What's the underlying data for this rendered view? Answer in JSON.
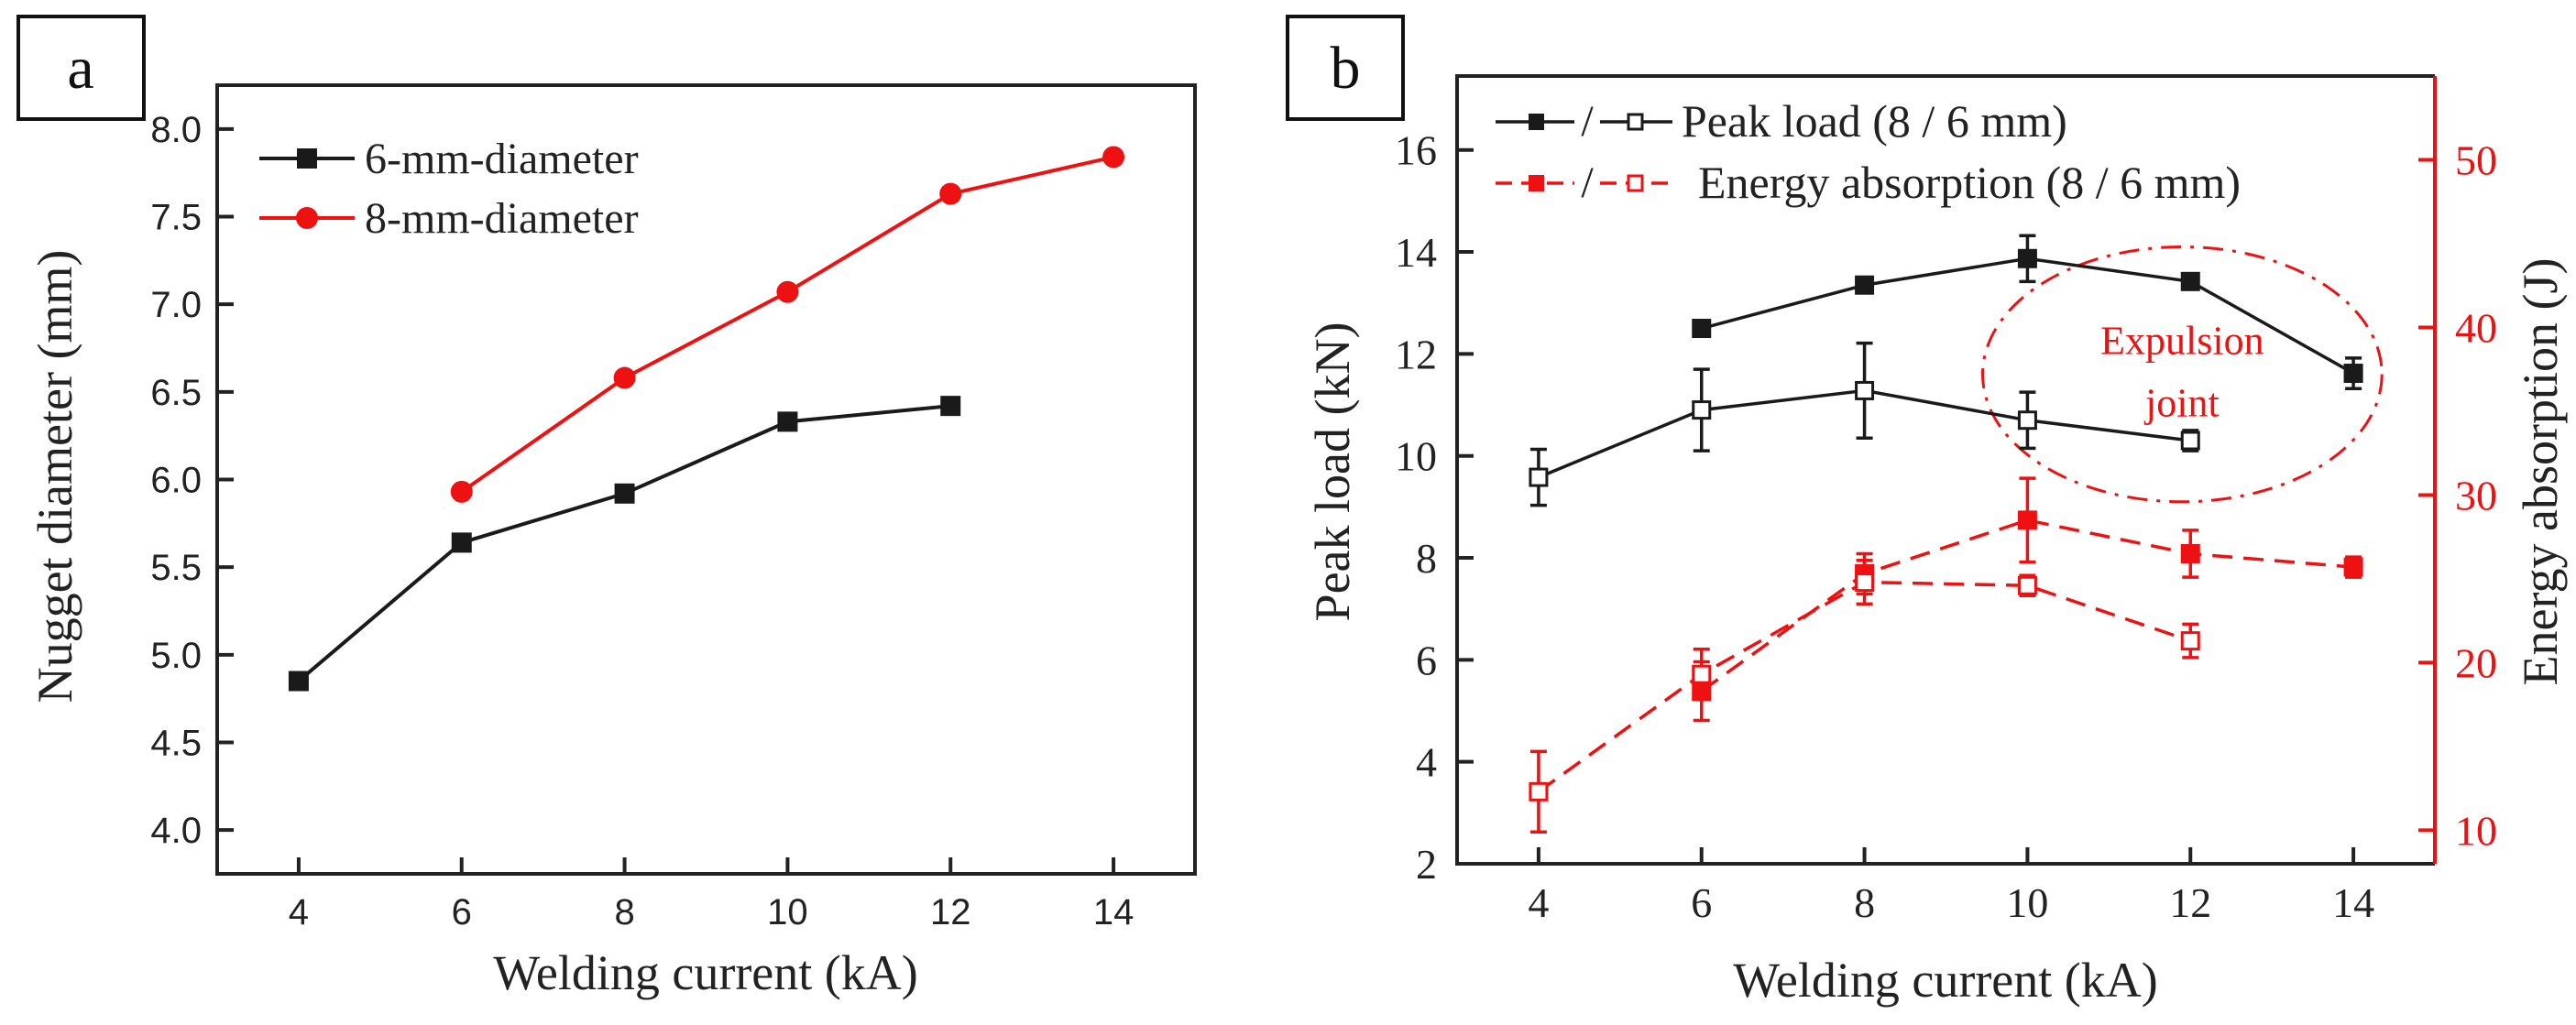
{
  "colors": {
    "black": "#1a1a1a",
    "red": "#ee1111"
  },
  "chart_data": [
    {
      "panel_label": "a",
      "type": "line",
      "title": "",
      "xlabel": "Welding current (kA)",
      "ylabel": "Nugget diameter (mm)",
      "xlim": [
        3,
        15
      ],
      "ylim": [
        3.75,
        8.25
      ],
      "xticks": [
        "4",
        "6",
        "8",
        "10",
        "12",
        "14"
      ],
      "yticks": [
        "4.0",
        "4.5",
        "5.0",
        "5.5",
        "6.0",
        "6.5",
        "7.0",
        "7.5",
        "8.0"
      ],
      "grid": false,
      "legend_position": "top-left",
      "series": [
        {
          "name": "6-mm-diameter",
          "color": "#1a1a1a",
          "marker": "square",
          "x": [
            4,
            6,
            8,
            10,
            12
          ],
          "y": [
            4.85,
            5.64,
            5.92,
            6.33,
            6.42
          ]
        },
        {
          "name": "8-mm-diameter",
          "color": "#ee1111",
          "marker": "circle",
          "x": [
            6,
            8,
            10,
            12,
            14
          ],
          "y": [
            5.93,
            6.58,
            7.07,
            7.63,
            7.84
          ]
        }
      ]
    },
    {
      "panel_label": "b",
      "type": "line",
      "title": "",
      "xlabel": "Welding current (kA)",
      "ylabel": "Peak load (kN)",
      "ylabel_right": "Energy absorption (J)",
      "xlim": [
        3,
        15
      ],
      "ylim": [
        2,
        17.45
      ],
      "ylim_right": [
        8,
        55
      ],
      "xticks": [
        "4",
        "6",
        "8",
        "10",
        "12",
        "14"
      ],
      "yticks": [
        "2",
        "4",
        "6",
        "8",
        "10",
        "12",
        "14",
        "16"
      ],
      "yticks_right": [
        "10",
        "20",
        "30",
        "40",
        "50"
      ],
      "grid": false,
      "legend_position": "top-left",
      "legend": [
        {
          "label": "Peak load (8 / 6 mm)",
          "separator": "/"
        },
        {
          "label": "Energy absorption (8 / 6 mm)",
          "separator": "/"
        }
      ],
      "annotation": {
        "lines": [
          "Expulsion",
          "joint"
        ],
        "center_x": 11.9,
        "center_y": 11.6,
        "radius_x": 2.45,
        "radius_y": 2.5
      },
      "series": [
        {
          "name": "Peak load 8 mm",
          "axis": "left",
          "color": "#1a1a1a",
          "marker": "filled-square",
          "dash": false,
          "x": [
            6,
            8,
            10,
            12,
            14
          ],
          "y": [
            12.5,
            13.35,
            13.87,
            13.42,
            11.62
          ],
          "err": [
            0.1,
            0.05,
            0.45,
            0.15,
            0.3
          ]
        },
        {
          "name": "Peak load 6 mm",
          "axis": "left",
          "color": "#1a1a1a",
          "marker": "open-square",
          "dash": false,
          "x": [
            4,
            6,
            8,
            10,
            12
          ],
          "y": [
            9.58,
            10.9,
            11.28,
            10.7,
            10.3
          ],
          "err": [
            0.55,
            0.8,
            0.93,
            0.55,
            0.2
          ]
        },
        {
          "name": "Energy absorption 8 mm",
          "axis": "right",
          "color": "#ee1111",
          "marker": "filled-square",
          "dash": true,
          "x": [
            6,
            8,
            10,
            12,
            14
          ],
          "y": [
            18.3,
            25.3,
            28.5,
            26.5,
            25.7
          ],
          "err": [
            1.75,
            1.2,
            2.5,
            1.4,
            0.6
          ]
        },
        {
          "name": "Energy absorption 6 mm",
          "axis": "right",
          "color": "#ee1111",
          "marker": "open-square",
          "dash": true,
          "x": [
            4,
            6,
            8,
            10,
            12
          ],
          "y": [
            12.3,
            19.3,
            24.8,
            24.6,
            21.3
          ],
          "err": [
            2.4,
            1.5,
            1.3,
            0.6,
            1.0
          ]
        }
      ]
    }
  ]
}
